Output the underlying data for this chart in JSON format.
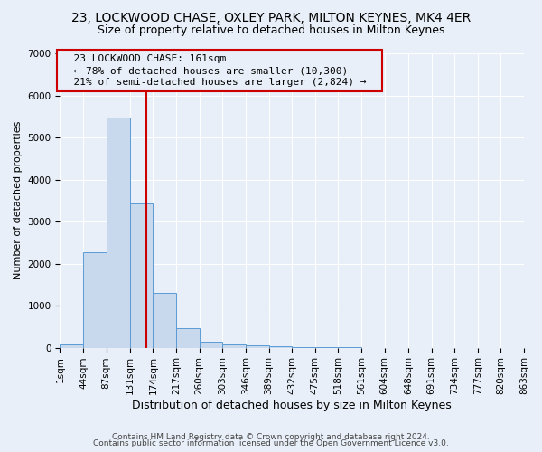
{
  "title1": "23, LOCKWOOD CHASE, OXLEY PARK, MILTON KEYNES, MK4 4ER",
  "title2": "Size of property relative to detached houses in Milton Keynes",
  "xlabel": "Distribution of detached houses by size in Milton Keynes",
  "ylabel": "Number of detached properties",
  "bin_edges": [
    1,
    44,
    87,
    131,
    174,
    217,
    260,
    303,
    346,
    389,
    432,
    475,
    518,
    561,
    604,
    648,
    691,
    734,
    777,
    820,
    863
  ],
  "bar_heights": [
    80,
    2280,
    5480,
    3440,
    1310,
    460,
    150,
    80,
    50,
    30,
    10,
    5,
    3,
    2,
    1,
    1,
    0,
    0,
    0,
    0
  ],
  "bar_color": "#c8d8ed",
  "bar_edge_color": "#5b9bd5",
  "vline_x": 161,
  "vline_color": "#cc0000",
  "ylim": [
    0,
    7000
  ],
  "yticks": [
    0,
    1000,
    2000,
    3000,
    4000,
    5000,
    6000,
    7000
  ],
  "annotation_title": "23 LOCKWOOD CHASE: 161sqm",
  "annotation_line1": "← 78% of detached houses are smaller (10,300)",
  "annotation_line2": "21% of semi-detached houses are larger (2,824) →",
  "annotation_box_color": "#cc0000",
  "footer1": "Contains HM Land Registry data © Crown copyright and database right 2024.",
  "footer2": "Contains public sector information licensed under the Open Government Licence v3.0.",
  "background_color": "#e8eff8",
  "grid_color": "#ffffff",
  "title1_fontsize": 10,
  "title2_fontsize": 9,
  "xlabel_fontsize": 9,
  "ylabel_fontsize": 8,
  "tick_fontsize": 7.5,
  "annotation_fontsize": 8,
  "footer_fontsize": 6.5
}
